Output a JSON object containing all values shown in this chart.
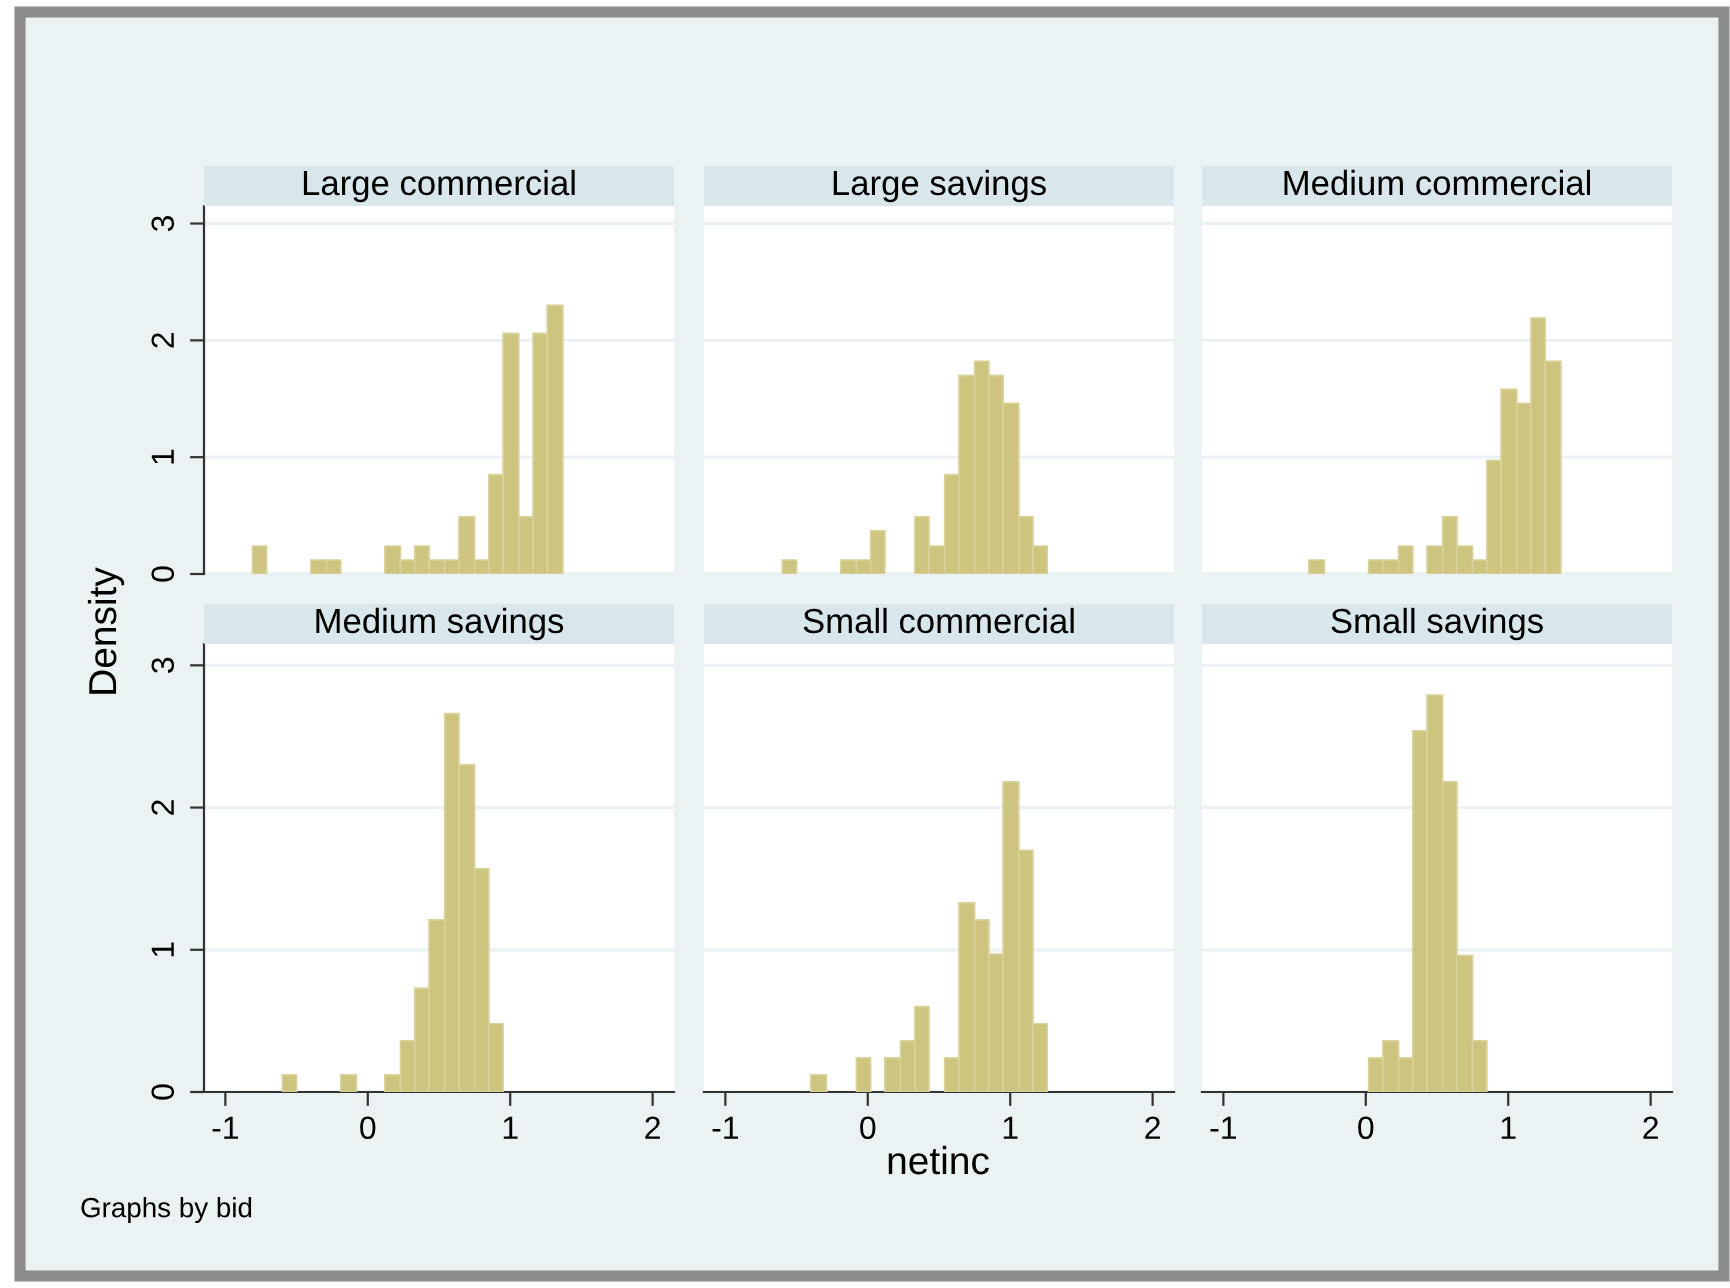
{
  "chart_data": [
    {
      "type": "histogram",
      "title": "Large commercial",
      "ylabel": "Density",
      "bins": [
        -0.81,
        -0.71,
        -0.4,
        -0.29,
        -0.19,
        0.12,
        0.23,
        0.33,
        0.43,
        0.54,
        0.64,
        0.75,
        0.85,
        0.95,
        1.06,
        1.16,
        1.26,
        1.37
      ],
      "values": [
        0.24,
        0,
        0.12,
        0.12,
        0,
        0.24,
        0.12,
        0.24,
        0.12,
        0.12,
        0.49,
        0.12,
        0.85,
        2.06,
        0.49,
        2.06,
        2.3
      ],
      "color": "#cdc47f",
      "xlim": [
        -1.15,
        2.15
      ],
      "ylim": [
        0,
        3.15
      ],
      "xticks": [
        -1,
        0,
        1,
        2
      ],
      "yticks": [
        0,
        1,
        2,
        3
      ],
      "grid": "y",
      "tick_labels": "y"
    },
    {
      "type": "histogram",
      "title": "Large savings",
      "bins": [
        -0.6,
        -0.5,
        -0.19,
        -0.08,
        0.02,
        0.12,
        0.33,
        0.43,
        0.54,
        0.64,
        0.75,
        0.85,
        0.95,
        1.06,
        1.16,
        1.26
      ],
      "values": [
        0.12,
        0,
        0.12,
        0.12,
        0.37,
        0,
        0.49,
        0.24,
        0.85,
        1.7,
        1.82,
        1.7,
        1.46,
        0.49,
        0.24
      ],
      "color": "#cdc47f",
      "xlim": [
        -1.15,
        2.15
      ],
      "ylim": [
        0,
        3.15
      ],
      "xticks": [
        -1,
        0,
        1,
        2
      ],
      "yticks": [
        0,
        1,
        2,
        3
      ],
      "grid": "y",
      "tick_labels": false
    },
    {
      "type": "histogram",
      "title": "Medium commercial",
      "bins": [
        -0.4,
        -0.29,
        0.02,
        0.12,
        0.23,
        0.33,
        0.43,
        0.54,
        0.64,
        0.75,
        0.85,
        0.95,
        1.06,
        1.16,
        1.26,
        1.37
      ],
      "values": [
        0.12,
        0,
        0.12,
        0.12,
        0.24,
        0,
        0.24,
        0.49,
        0.24,
        0.12,
        0.97,
        1.58,
        1.46,
        2.19,
        1.82
      ],
      "color": "#cdc47f",
      "xlim": [
        -1.15,
        2.15
      ],
      "ylim": [
        0,
        3.15
      ],
      "xticks": [
        -1,
        0,
        1,
        2
      ],
      "yticks": [
        0,
        1,
        2,
        3
      ],
      "grid": "y",
      "tick_labels": false
    },
    {
      "type": "histogram",
      "title": "Medium savings",
      "annotations": [
        "Graphs by bid"
      ],
      "bins": [
        -0.6,
        -0.5,
        -0.19,
        -0.08,
        0.12,
        0.23,
        0.33,
        0.43,
        0.54,
        0.64,
        0.75,
        0.85,
        0.95
      ],
      "values": [
        0.12,
        0,
        0.12,
        0,
        0.12,
        0.36,
        0.73,
        1.21,
        2.66,
        2.3,
        1.57,
        0.48
      ],
      "color": "#cdc47f",
      "xlim": [
        -1.15,
        2.15
      ],
      "ylim": [
        0,
        3.15
      ],
      "xticks": [
        -1,
        0,
        1,
        2
      ],
      "yticks": [
        0,
        1,
        2,
        3
      ],
      "grid": "y"
    },
    {
      "type": "histogram",
      "title": "Small commercial",
      "xlabel": "netinc",
      "bins": [
        -0.4,
        -0.29,
        -0.08,
        0.02,
        0.12,
        0.23,
        0.33,
        0.43,
        0.54,
        0.64,
        0.75,
        0.85,
        0.95,
        1.06,
        1.16,
        1.26
      ],
      "values": [
        0.12,
        0,
        0.24,
        0,
        0.24,
        0.36,
        0.6,
        0,
        0.24,
        1.33,
        1.21,
        0.97,
        2.18,
        1.7,
        0.48
      ],
      "color": "#cdc47f",
      "xlim": [
        -1.15,
        2.15
      ],
      "ylim": [
        0,
        3.15
      ],
      "xticks": [
        -1,
        0,
        1,
        2
      ],
      "yticks": [
        0,
        1,
        2,
        3
      ],
      "grid": "y",
      "tick_labels": "x"
    },
    {
      "type": "histogram",
      "title": "Small savings",
      "bins": [
        0.02,
        0.12,
        0.23,
        0.33,
        0.43,
        0.54,
        0.64,
        0.75,
        0.85
      ],
      "values": [
        0.24,
        0.36,
        0.24,
        2.54,
        2.79,
        2.18,
        0.96,
        0.36
      ],
      "color": "#cdc47f",
      "xlim": [
        -1.15,
        2.15
      ],
      "ylim": [
        0,
        3.15
      ],
      "xticks": [
        -1,
        0,
        1,
        2
      ],
      "yticks": [
        0,
        1,
        2,
        3
      ],
      "grid": "y",
      "tick_labels": "x"
    }
  ]
}
